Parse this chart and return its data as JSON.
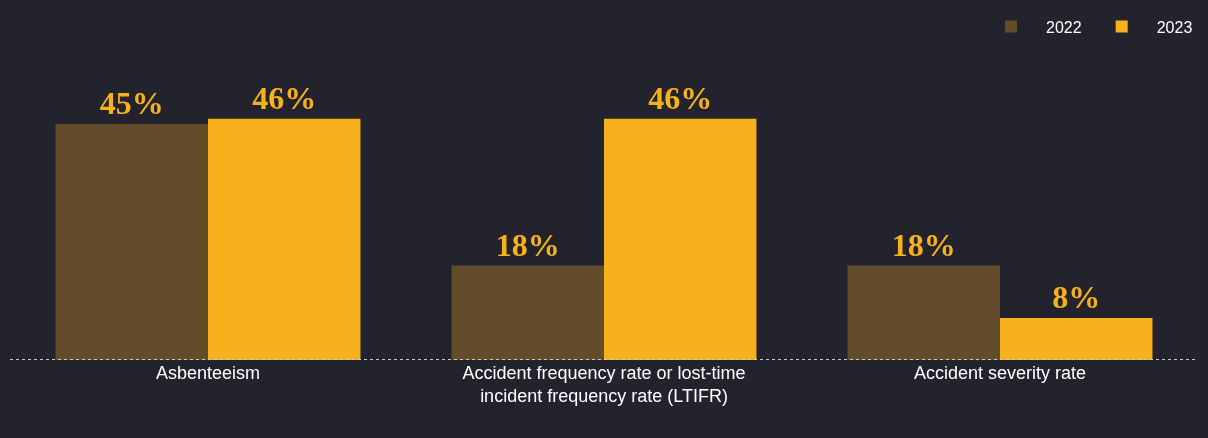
{
  "chart_data": {
    "type": "bar",
    "categories": [
      "Asbenteeism",
      "Accident frequency rate or lost-time incident frequency rate (LTIFR)",
      "Accident severity rate"
    ],
    "series": [
      {
        "name": "2022",
        "color": "#634c2a",
        "values": [
          45,
          18,
          18
        ],
        "value_labels": [
          "45%",
          "18%",
          "18%"
        ]
      },
      {
        "name": "2023",
        "color": "#f7b11c",
        "values": [
          46,
          46,
          8
        ],
        "value_labels": [
          "46%",
          "46%",
          "8%"
        ]
      }
    ],
    "legend": "top right",
    "tick_labels": "x"
  }
}
